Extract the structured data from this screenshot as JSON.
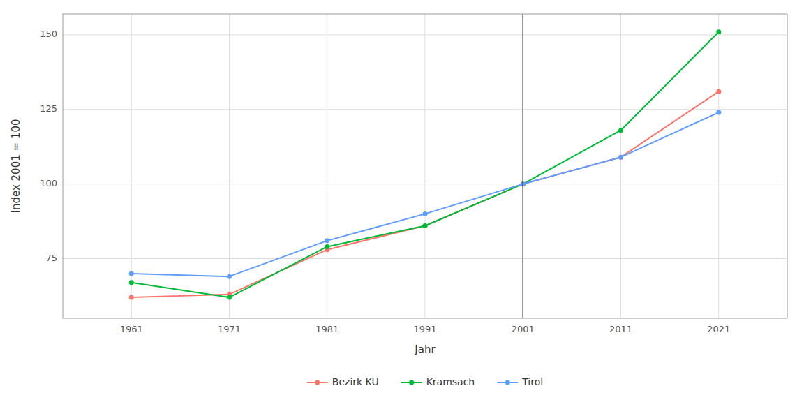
{
  "chart_data": {
    "type": "line",
    "x_label": "Jahr",
    "y_label": "Index 2001 = 100",
    "x": [
      1961,
      1971,
      1981,
      1991,
      2001,
      2011,
      2021
    ],
    "series": [
      {
        "name": "Bezirk KU",
        "color": "#F8766D",
        "marker": "circle",
        "values": [
          62,
          63,
          78,
          86,
          100,
          109,
          131
        ]
      },
      {
        "name": "Kramsach",
        "color": "#00BA38",
        "marker": "circle",
        "values": [
          67,
          62,
          79,
          86,
          100,
          118,
          151
        ]
      },
      {
        "name": "Tirol",
        "color": "#619CFF",
        "marker": "circle",
        "values": [
          70,
          69,
          81,
          90,
          100,
          109,
          124
        ]
      }
    ],
    "xlim": [
      1954,
      2028
    ],
    "xticks": [
      1961,
      1971,
      1981,
      1991,
      2001,
      2011,
      2021
    ],
    "ylim": [
      55,
      157
    ],
    "yticks": [
      75,
      100,
      125,
      150
    ],
    "vline": 2001,
    "grid": true,
    "legend": "bottom"
  }
}
